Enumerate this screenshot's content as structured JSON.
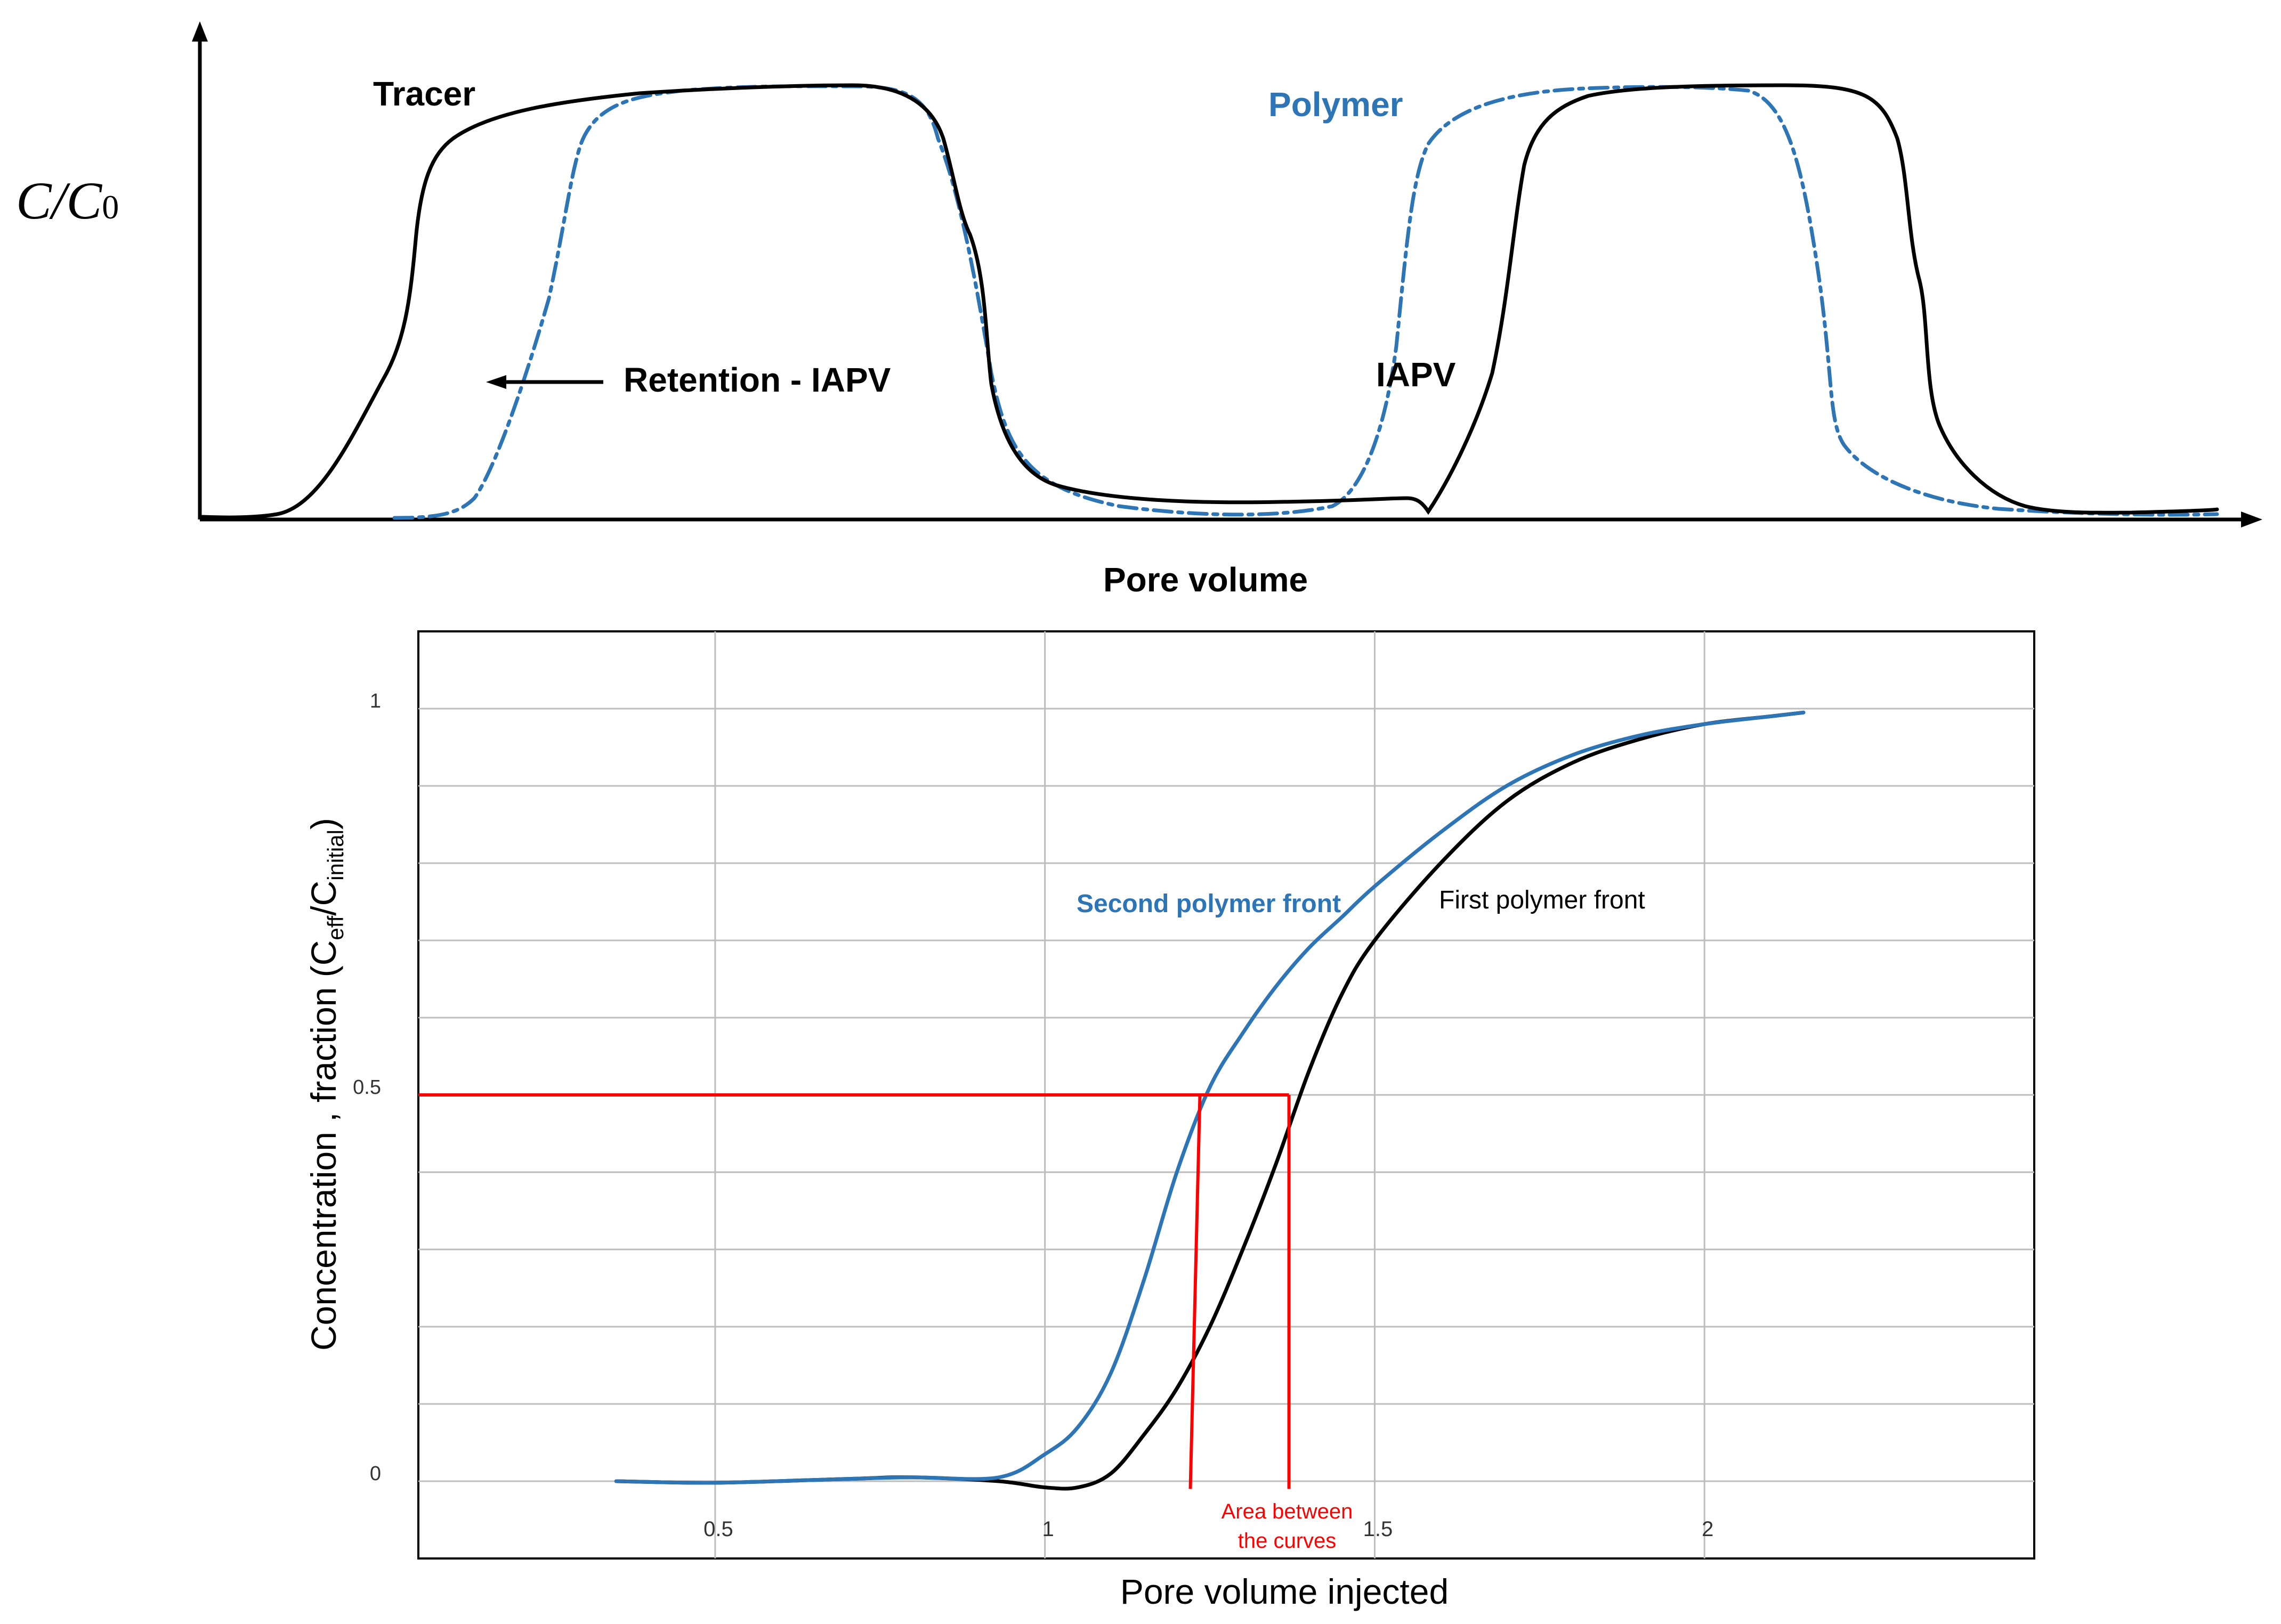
{
  "chart_data": [
    {
      "type": "line",
      "title": "",
      "xlabel": "Pore volume",
      "ylabel": "C/C0",
      "ylabel_main": "C/C",
      "ylabel_subscript": "0",
      "axis_ticks": false,
      "grid": false,
      "series": [
        {
          "name": "Tracer",
          "color": "#000000",
          "style": "solid"
        },
        {
          "name": "Polymer",
          "color": "#2E75B6",
          "style": "dash-dot"
        }
      ],
      "annotations": [
        {
          "text": "Retention - IAPV",
          "type": "arrow-left"
        },
        {
          "text": "IAPV"
        }
      ]
    },
    {
      "type": "line",
      "title": "",
      "xlabel": "Pore volume injected",
      "ylabel_prefix": "Concentration , fraction (C",
      "ylabel_sub1": "eff",
      "ylabel_sep": "/C",
      "ylabel_sub2": "initial",
      "ylabel_suffix": ")",
      "xlim": [
        0.05,
        2.5
      ],
      "ylim": [
        -0.1,
        1.1
      ],
      "xticks": [
        {
          "value": 0.5,
          "label": "0.5"
        },
        {
          "value": 1,
          "label": "1"
        },
        {
          "value": 1.5,
          "label": "1.5"
        },
        {
          "value": 2,
          "label": "2"
        }
      ],
      "yticks": [
        {
          "value": 0,
          "label": "0"
        },
        {
          "value": 0.5,
          "label": "0.5"
        },
        {
          "value": 1,
          "label": "1"
        }
      ],
      "grid": true,
      "series": [
        {
          "name": "Second polymer front",
          "color": "#2E75B6",
          "x": [
            0.35,
            0.5,
            0.7,
            0.8,
            0.93,
            1.0,
            1.05,
            1.1,
            1.15,
            1.2,
            1.25,
            1.3,
            1.35,
            1.4,
            1.45,
            1.5,
            1.6,
            1.7,
            1.8,
            1.9,
            2.0,
            2.1,
            2.15
          ],
          "y": [
            0.0,
            -0.002,
            0.003,
            0.005,
            0.005,
            0.035,
            0.07,
            0.14,
            0.26,
            0.4,
            0.51,
            0.58,
            0.64,
            0.69,
            0.73,
            0.77,
            0.84,
            0.9,
            0.94,
            0.965,
            0.98,
            0.99,
            0.995
          ]
        },
        {
          "name": "First polymer front",
          "color": "#000000",
          "x": [
            0.35,
            0.5,
            0.7,
            0.8,
            0.93,
            1.0,
            1.05,
            1.1,
            1.15,
            1.2,
            1.25,
            1.3,
            1.35,
            1.4,
            1.45,
            1.5,
            1.6,
            1.7,
            1.8,
            1.9,
            2.0,
            2.1,
            2.15
          ],
          "y": [
            0.0,
            -0.002,
            0.003,
            0.005,
            0.0,
            -0.008,
            -0.008,
            0.01,
            0.06,
            0.12,
            0.2,
            0.3,
            0.41,
            0.53,
            0.63,
            0.7,
            0.8,
            0.88,
            0.93,
            0.96,
            0.98,
            0.99,
            0.995
          ]
        }
      ],
      "reference_lines": {
        "color": "#FF0000",
        "y_level": 0.5,
        "x_values": [
          1.235,
          1.37
        ],
        "drop_to_y": -0.01
      },
      "annotations": [
        {
          "text": "Area between",
          "color": "#FF0000"
        },
        {
          "text": "the curves",
          "color": "#FF0000"
        }
      ]
    }
  ]
}
